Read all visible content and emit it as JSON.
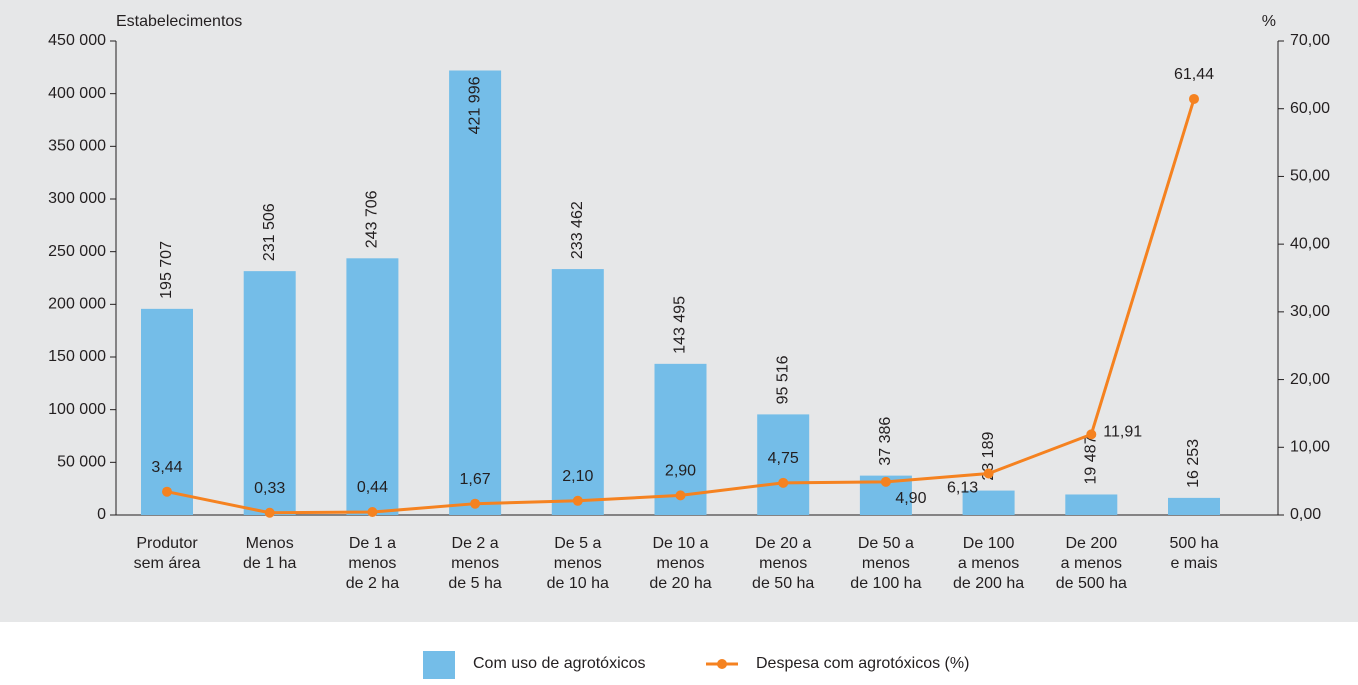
{
  "chart_data": {
    "type": "bar",
    "y_label": "Estabelecimentos",
    "y2_label": "%",
    "categories": [
      "Produtor\nsem área",
      "Menos\nde 1 ha",
      "De 1 a\nmenos\nde 2 ha",
      "De 2 a\nmenos\nde 5 ha",
      "De 5 a\nmenos\nde 10 ha",
      "De 10 a\nmenos\nde 20 ha",
      "De 20 a\nmenos\nde 50 ha",
      "De 50 a\nmenos\nde 100 ha",
      "De 100\na menos\nde 200 ha",
      "De 200\na menos\nde 500 ha",
      "500 ha\ne mais"
    ],
    "series": [
      {
        "name": "Com uso de agrotóxicos",
        "type": "bar",
        "color": "#74bde8",
        "values": [
          195707,
          231506,
          243706,
          421996,
          233462,
          143495,
          95516,
          37386,
          23189,
          19487,
          16253
        ],
        "value_labels": [
          "195 707",
          "231 506",
          "243 706",
          "421 996",
          "233 462",
          "143 495",
          "95 516",
          "37 386",
          "23 189",
          "19 487",
          "16 253"
        ]
      },
      {
        "name": "Despesa com agrotóxicos (%)",
        "type": "line",
        "axis": "y2",
        "color": "#f58220",
        "values": [
          3.44,
          0.33,
          0.44,
          1.67,
          2.1,
          2.9,
          4.75,
          4.9,
          6.13,
          11.91,
          61.44
        ],
        "value_labels": [
          "3,44",
          "0,33",
          "0,44",
          "1,67",
          "2,10",
          "2,90",
          "4,75",
          "4,90",
          "6,13",
          "11,91",
          "61,44"
        ]
      }
    ],
    "ylim": [
      0,
      450000
    ],
    "yticks": [
      0,
      {
        "value": 50000,
        "label": "50 000"
      },
      {
        "value": 100000,
        "label": "100 000"
      },
      {
        "value": 150000,
        "label": "150 000"
      },
      {
        "value": 200000,
        "label": "200 000"
      },
      {
        "value": 250000,
        "label": "250 000"
      },
      {
        "value": 300000,
        "label": "300 000"
      },
      {
        "value": 350000,
        "label": "350 000"
      },
      {
        "value": 400000,
        "label": "400 000"
      },
      {
        "value": 450000,
        "label": "450 000"
      }
    ],
    "y2lim": [
      0,
      70
    ],
    "y2ticks": [
      {
        "value": 0,
        "label": "0,00"
      },
      {
        "value": 10,
        "label": "10,00"
      },
      {
        "value": 20,
        "label": "20,00"
      },
      {
        "value": 30,
        "label": "30,00"
      },
      {
        "value": 40,
        "label": "40,00"
      },
      {
        "value": 50,
        "label": "50,00"
      },
      {
        "value": 60,
        "label": "60,00"
      },
      {
        "value": 70,
        "label": "70,00"
      }
    ],
    "legend": "bottom"
  }
}
